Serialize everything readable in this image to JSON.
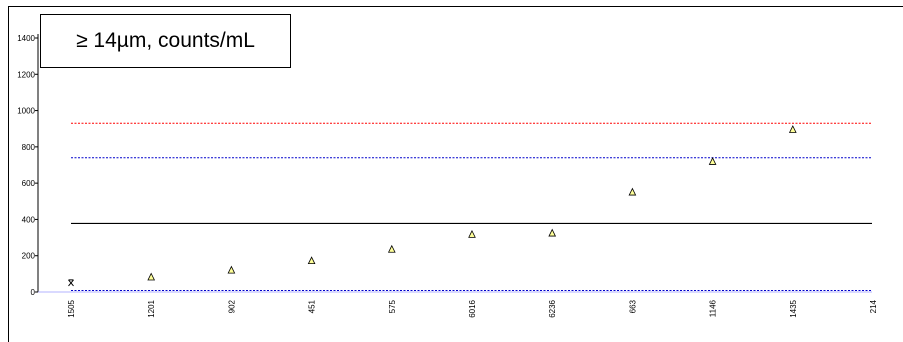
{
  "chart_data": {
    "type": "scatter",
    "title": "≥ 14µm, counts/mL",
    "xlabel": "",
    "ylabel": "",
    "categories": [
      "1505",
      "1201",
      "902",
      "451",
      "575",
      "6016",
      "6236",
      "663",
      "1146",
      "1435",
      "214"
    ],
    "ylim": [
      0,
      1400
    ],
    "yticks": [
      0,
      200,
      400,
      600,
      800,
      1000,
      1200,
      1400
    ],
    "series": [
      {
        "marker": "x",
        "color": "#000000",
        "points": [
          {
            "category": "1505",
            "value": 50
          }
        ]
      },
      {
        "marker": "triangle",
        "color": "#ffff99",
        "points": [
          {
            "category": "1201",
            "value": 80
          },
          {
            "category": "902",
            "value": 118
          },
          {
            "category": "451",
            "value": 170
          },
          {
            "category": "575",
            "value": 233
          },
          {
            "category": "6016",
            "value": 315
          },
          {
            "category": "6236",
            "value": 322
          },
          {
            "category": "663",
            "value": 548
          },
          {
            "category": "1146",
            "value": 717
          },
          {
            "category": "1435",
            "value": 893
          }
        ]
      }
    ],
    "reference_lines": [
      {
        "value": 930,
        "color": "#ff0000",
        "style": "dotted"
      },
      {
        "value": 740,
        "color": "#0000cc",
        "style": "dotted"
      },
      {
        "value": 378,
        "color": "#000000",
        "style": "solid"
      },
      {
        "value": 8,
        "color": "#0000cc",
        "style": "dotted"
      }
    ],
    "grid": false,
    "legend": "none"
  }
}
